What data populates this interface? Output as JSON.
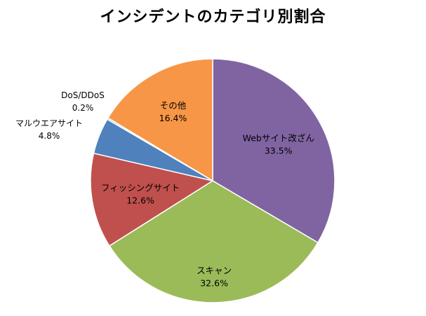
{
  "chart_data": {
    "type": "pie",
    "title": "インシデントのカテゴリ別割合",
    "slices": [
      {
        "label": "Webサイト改ざん",
        "value": 33.5,
        "value_text": "33.5%",
        "color": "#8064a2"
      },
      {
        "label": "スキャン",
        "value": 32.6,
        "value_text": "32.6%",
        "color": "#9bbb59"
      },
      {
        "label": "フィッシングサイト",
        "value": 12.6,
        "value_text": "12.6%",
        "color": "#c0504d"
      },
      {
        "label": "マルウエアサイト",
        "value": 4.8,
        "value_text": "4.8%",
        "color": "#4f81bd"
      },
      {
        "label": "DoS/DDoS",
        "value": 0.2,
        "value_text": "0.2%",
        "color": "#4bacc6"
      },
      {
        "label": "その他",
        "value": 16.4,
        "value_text": "16.4%",
        "color": "#f79646"
      }
    ],
    "start_angle": "12 o'clock",
    "direction": "clockwise",
    "legend": "none",
    "data_labels": "category name and percentage"
  }
}
